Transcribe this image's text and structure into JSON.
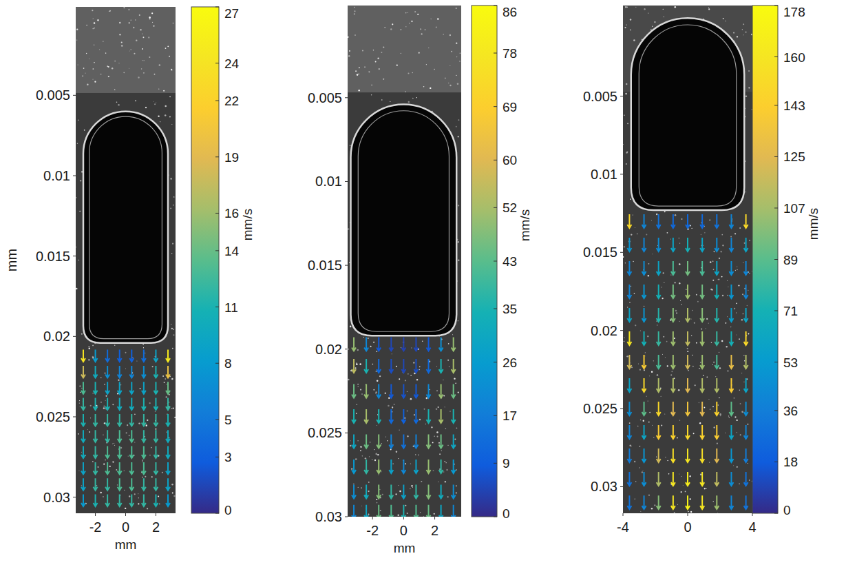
{
  "chart_data": [
    {
      "type": "quiver",
      "xlabel": "mm",
      "ylabel": "mm",
      "xlim": [
        -3.3,
        3.3
      ],
      "xticks": [
        -2,
        0,
        2
      ],
      "ylim": [
        0.031,
        -0.0005
      ],
      "yticks": [
        0.005,
        0.01,
        0.015,
        0.02,
        0.025,
        0.03
      ],
      "bubble": {
        "top": 0.006,
        "bottom": 0.0204,
        "half_width": 2.8
      },
      "grid_x": [
        -2.8,
        -2.0,
        -1.2,
        -0.4,
        0.4,
        1.2,
        2.0,
        2.8
      ],
      "grid_y": [
        0.0212,
        0.0222,
        0.0232,
        0.0242,
        0.0252,
        0.0262,
        0.0272,
        0.0282,
        0.0292,
        0.0302
      ],
      "speed": [
        [
          24,
          8,
          4,
          3,
          3,
          4,
          9,
          25
        ],
        [
          18,
          10,
          7,
          6,
          6,
          7,
          11,
          20
        ],
        [
          13,
          11,
          9,
          9,
          9,
          9,
          11,
          14
        ],
        [
          12,
          11,
          11,
          10,
          10,
          11,
          11,
          12
        ],
        [
          11,
          12,
          12,
          12,
          12,
          12,
          12,
          11
        ],
        [
          10,
          12,
          12,
          13,
          13,
          12,
          12,
          10
        ],
        [
          10,
          12,
          13,
          13,
          13,
          13,
          12,
          10
        ],
        [
          9,
          12,
          13,
          13,
          13,
          13,
          12,
          9
        ],
        [
          9,
          12,
          12,
          13,
          13,
          12,
          12,
          9
        ],
        [
          8,
          11,
          12,
          12,
          12,
          12,
          11,
          8
        ]
      ],
      "colorbar": {
        "range": [
          0,
          27
        ],
        "ticks": [
          0,
          3,
          5,
          8,
          11,
          14,
          16,
          19,
          22,
          24,
          27
        ],
        "label": "mm/s"
      }
    },
    {
      "type": "quiver",
      "xlabel": "mm",
      "xlim": [
        -3.6,
        3.7
      ],
      "xticks": [
        -2,
        0,
        2
      ],
      "ylim": [
        0.03,
        -0.0005
      ],
      "yticks": [
        0.005,
        0.01,
        0.015,
        0.02,
        0.025,
        0.03
      ],
      "bubble": {
        "top": 0.0054,
        "bottom": 0.0192,
        "half_width": 3.4
      },
      "grid_x": [
        -3.2,
        -2.4,
        -1.6,
        -0.8,
        0,
        0.8,
        1.6,
        2.4,
        3.2
      ],
      "grid_y": [
        0.0197,
        0.021,
        0.0225,
        0.024,
        0.0255,
        0.027,
        0.0285,
        0.0297
      ],
      "speed": [
        [
          50,
          20,
          8,
          5,
          4,
          5,
          8,
          22,
          50
        ],
        [
          55,
          35,
          12,
          6,
          5,
          6,
          12,
          35,
          52
        ],
        [
          45,
          50,
          20,
          8,
          7,
          8,
          20,
          50,
          45
        ],
        [
          35,
          52,
          35,
          12,
          10,
          12,
          35,
          52,
          35
        ],
        [
          30,
          45,
          48,
          18,
          14,
          18,
          48,
          45,
          30
        ],
        [
          25,
          38,
          50,
          28,
          20,
          28,
          50,
          38,
          25
        ],
        [
          22,
          32,
          48,
          38,
          28,
          38,
          48,
          32,
          22
        ],
        [
          20,
          30,
          45,
          42,
          35,
          42,
          45,
          30,
          20
        ]
      ],
      "colorbar": {
        "range": [
          0,
          86
        ],
        "ticks": [
          0,
          9,
          17,
          26,
          35,
          43,
          52,
          60,
          69,
          78,
          86
        ],
        "label": "mm/s"
      }
    },
    {
      "type": "quiver",
      "xlim": [
        -4,
        4
      ],
      "xticks": [
        -4,
        0,
        4
      ],
      "ylim": [
        0.0317,
        -0.0008
      ],
      "yticks": [
        0.005,
        0.01,
        0.015,
        0.02,
        0.025,
        0.03
      ],
      "bubble": {
        "top": 0.0,
        "bottom": 0.0123,
        "half_width": 3.5
      },
      "grid_x": [
        -3.6,
        -2.7,
        -1.8,
        -0.9,
        0,
        0.9,
        1.8,
        2.7,
        3.6
      ],
      "grid_y": [
        0.013,
        0.0145,
        0.016,
        0.0175,
        0.019,
        0.0205,
        0.022,
        0.0235,
        0.025,
        0.0265,
        0.028,
        0.0295,
        0.031
      ],
      "speed": [
        [
          150,
          40,
          30,
          25,
          25,
          25,
          30,
          40,
          150
        ],
        [
          50,
          40,
          45,
          60,
          70,
          60,
          45,
          40,
          60
        ],
        [
          40,
          45,
          60,
          85,
          95,
          85,
          60,
          45,
          40
        ],
        [
          40,
          50,
          70,
          95,
          105,
          95,
          70,
          50,
          40
        ],
        [
          60,
          50,
          75,
          100,
          110,
          100,
          75,
          55,
          60
        ],
        [
          160,
          70,
          80,
          105,
          115,
          105,
          80,
          70,
          150
        ],
        [
          120,
          140,
          85,
          105,
          120,
          105,
          85,
          130,
          110
        ],
        [
          60,
          150,
          110,
          110,
          125,
          110,
          110,
          140,
          60
        ],
        [
          45,
          90,
          150,
          125,
          135,
          125,
          145,
          90,
          45
        ],
        [
          40,
          60,
          140,
          145,
          150,
          145,
          140,
          60,
          40
        ],
        [
          35,
          50,
          120,
          155,
          160,
          155,
          125,
          50,
          35
        ],
        [
          30,
          45,
          110,
          160,
          165,
          160,
          115,
          45,
          30
        ],
        [
          30,
          40,
          100,
          160,
          170,
          160,
          105,
          40,
          30
        ]
      ],
      "colorbar": {
        "range": [
          0,
          178
        ],
        "ticks": [
          0,
          18,
          36,
          53,
          71,
          89,
          107,
          125,
          143,
          160,
          178
        ],
        "label": "mm/s"
      }
    }
  ]
}
